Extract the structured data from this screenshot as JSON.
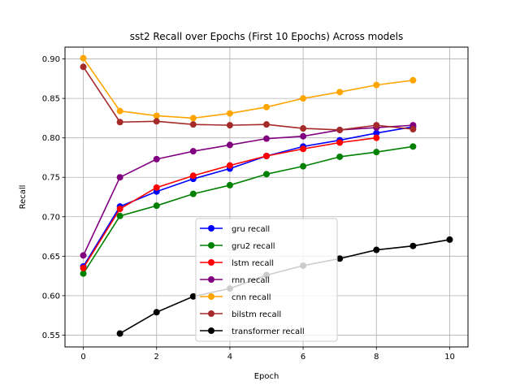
{
  "chart_data": {
    "type": "line",
    "title": "sst2 Recall over Epochs (First 10 Epochs) Across models",
    "xlabel": "Epoch",
    "ylabel": "Recall",
    "xlim": [
      -0.5,
      10.5
    ],
    "ylim": [
      0.535,
      0.915
    ],
    "xticks": [
      0,
      2,
      4,
      6,
      8,
      10
    ],
    "yticks": [
      0.55,
      0.6,
      0.65,
      0.7,
      0.75,
      0.8,
      0.85,
      0.9
    ],
    "grid": true,
    "legend_position": "lower-center",
    "series": [
      {
        "name": "gru recall",
        "color": "#0000ff",
        "x": [
          0,
          1,
          2,
          3,
          4,
          5,
          6,
          7,
          8,
          9
        ],
        "values": [
          0.637,
          0.713,
          0.732,
          0.748,
          0.761,
          0.777,
          0.789,
          0.797,
          0.806,
          0.814
        ]
      },
      {
        "name": "gru2 recall",
        "color": "#008000",
        "x": [
          0,
          1,
          2,
          3,
          4,
          5,
          6,
          7,
          8,
          9
        ],
        "values": [
          0.628,
          0.701,
          0.714,
          0.729,
          0.74,
          0.754,
          0.764,
          0.776,
          0.782,
          0.789
        ]
      },
      {
        "name": "lstm recall",
        "color": "#ff0000",
        "x": [
          0,
          1,
          2,
          3,
          4,
          5,
          6,
          7,
          8
        ],
        "values": [
          0.635,
          0.71,
          0.737,
          0.752,
          0.765,
          0.777,
          0.786,
          0.794,
          0.8
        ]
      },
      {
        "name": "rnn recall",
        "color": "#800080",
        "x": [
          0,
          1,
          2,
          3,
          4,
          5,
          6,
          7,
          8,
          9
        ],
        "values": [
          0.651,
          0.75,
          0.773,
          0.783,
          0.791,
          0.799,
          0.802,
          0.81,
          0.813,
          0.816
        ]
      },
      {
        "name": "cnn recall",
        "color": "#ffa500",
        "x": [
          0,
          1,
          2,
          3,
          4,
          5,
          6,
          7,
          8,
          9
        ],
        "values": [
          0.901,
          0.834,
          0.828,
          0.825,
          0.831,
          0.839,
          0.85,
          0.858,
          0.867,
          0.873
        ]
      },
      {
        "name": "bilstm recall",
        "color": "#a52a2a",
        "x": [
          0,
          1,
          2,
          3,
          4,
          5,
          6,
          7,
          8,
          9
        ],
        "values": [
          0.89,
          0.82,
          0.821,
          0.817,
          0.816,
          0.817,
          0.812,
          0.81,
          0.816,
          0.811
        ]
      },
      {
        "name": "transformer recall",
        "color": "#000000",
        "x": [
          1,
          2,
          3,
          4,
          5,
          6,
          7,
          8,
          9,
          10
        ],
        "values": [
          0.552,
          0.579,
          0.599,
          0.609,
          0.626,
          0.638,
          0.647,
          0.658,
          0.663,
          0.671
        ]
      }
    ]
  }
}
